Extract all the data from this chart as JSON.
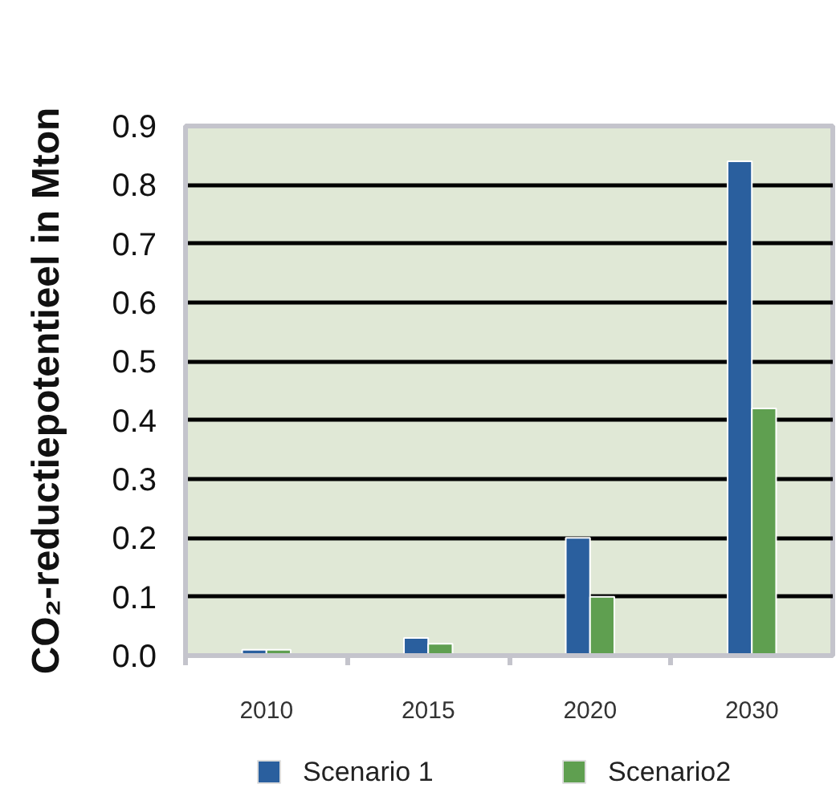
{
  "chart_data": {
    "type": "bar",
    "categories": [
      "2010",
      "2015",
      "2020",
      "2030"
    ],
    "series": [
      {
        "name": "Scenario 1",
        "color": "#2a5f9e",
        "values": [
          0.01,
          0.03,
          0.2,
          0.84
        ]
      },
      {
        "name": "Scenario2",
        "color": "#5f9f50",
        "values": [
          0.01,
          0.02,
          0.1,
          0.42
        ]
      }
    ],
    "ylabel": "CO₂-reductiepotentieel in Mton",
    "ylim": [
      0,
      0.9
    ],
    "yticks": [
      {
        "value": 0,
        "label": "0.0"
      },
      0.1,
      0.2,
      0.3,
      0.4,
      0.5,
      0.6,
      0.7,
      0.8,
      0.9
    ],
    "grid": "y",
    "legend": "bottom"
  }
}
